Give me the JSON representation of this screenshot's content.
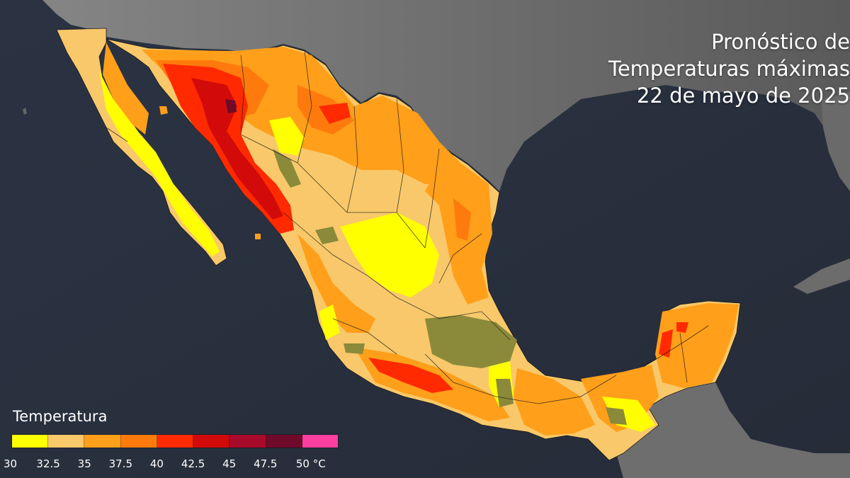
{
  "title": {
    "line1": "Pronóstico de",
    "line2": "Temperaturas máximas",
    "line3": "22 de mayo de 2025"
  },
  "legend": {
    "title": "Temperatura",
    "unit": "°C",
    "ticks": [
      "30",
      "32.5",
      "35",
      "37.5",
      "40",
      "42.5",
      "45",
      "47.5",
      "50 °C"
    ],
    "colors": [
      "#ffff00",
      "#f8c86a",
      "#ff9f1a",
      "#ff7a0d",
      "#ff2a00",
      "#d20a0a",
      "#a80a2a",
      "#6e0a2a",
      "#ff3fa0"
    ]
  },
  "palette": {
    "ocean": "#2a3140",
    "land_gray": "#7a7a7a",
    "yellow": "#ffff00",
    "light_orange": "#f8c86a",
    "orange": "#ff9f1a",
    "dark_orange": "#ff7a0d",
    "red": "#ff2a00",
    "dark_red": "#d20a0a",
    "olive": "#8a8a3a"
  }
}
